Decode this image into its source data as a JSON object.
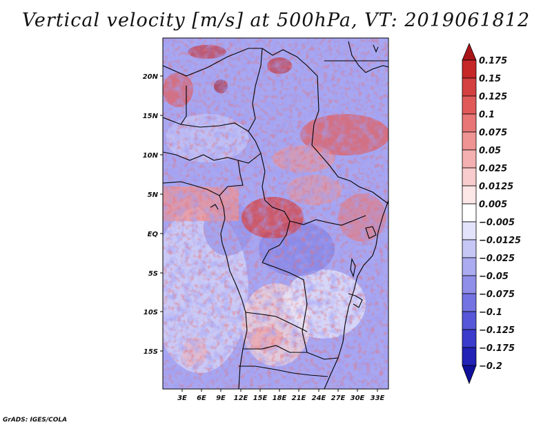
{
  "title": "Vertical velocity [m/s] at 500hPa, VT: 2019061812",
  "credit": "GrADS: IGES/COLA",
  "map": {
    "variable": "Vertical velocity",
    "units": "m/s",
    "level": "500hPa",
    "valid_time": "2019061812",
    "y_ticks": [
      "20N",
      "15N",
      "10N",
      "5N",
      "EQ",
      "5S",
      "10S",
      "15S"
    ],
    "x_ticks": [
      "3E",
      "6E",
      "9E",
      "12E",
      "15E",
      "18E",
      "21E",
      "24E",
      "27E",
      "30E",
      "33E"
    ]
  },
  "colorbar": {
    "labels": [
      "0.175",
      "0.15",
      "0.125",
      "0.1",
      "0.075",
      "0.05",
      "0.025",
      "0.0125",
      "0.005",
      "−0.005",
      "−0.0125",
      "−0.025",
      "−0.05",
      "−0.075",
      "−0.1",
      "−0.125",
      "−0.175",
      "−0.2"
    ],
    "colors": [
      "#a81519",
      "#c62828",
      "#d44040",
      "#e15a5a",
      "#e87676",
      "#ef9393",
      "#f4b0b0",
      "#f8cccc",
      "#fce6e6",
      "#ffffff",
      "#e3e3fb",
      "#c7c7f6",
      "#ababf0",
      "#8f8fe9",
      "#7373e2",
      "#5757d9",
      "#3b3bcc",
      "#2222b6",
      "#10109a"
    ]
  }
}
